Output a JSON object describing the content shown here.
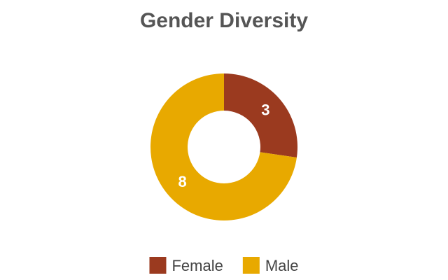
{
  "chart_data": {
    "type": "donut",
    "title": "Gender Diversity",
    "categories": [
      "Female",
      "Male"
    ],
    "values": [
      3,
      8
    ],
    "colors": [
      "#9b3a1f",
      "#e8a900"
    ],
    "legend": "bottom"
  }
}
